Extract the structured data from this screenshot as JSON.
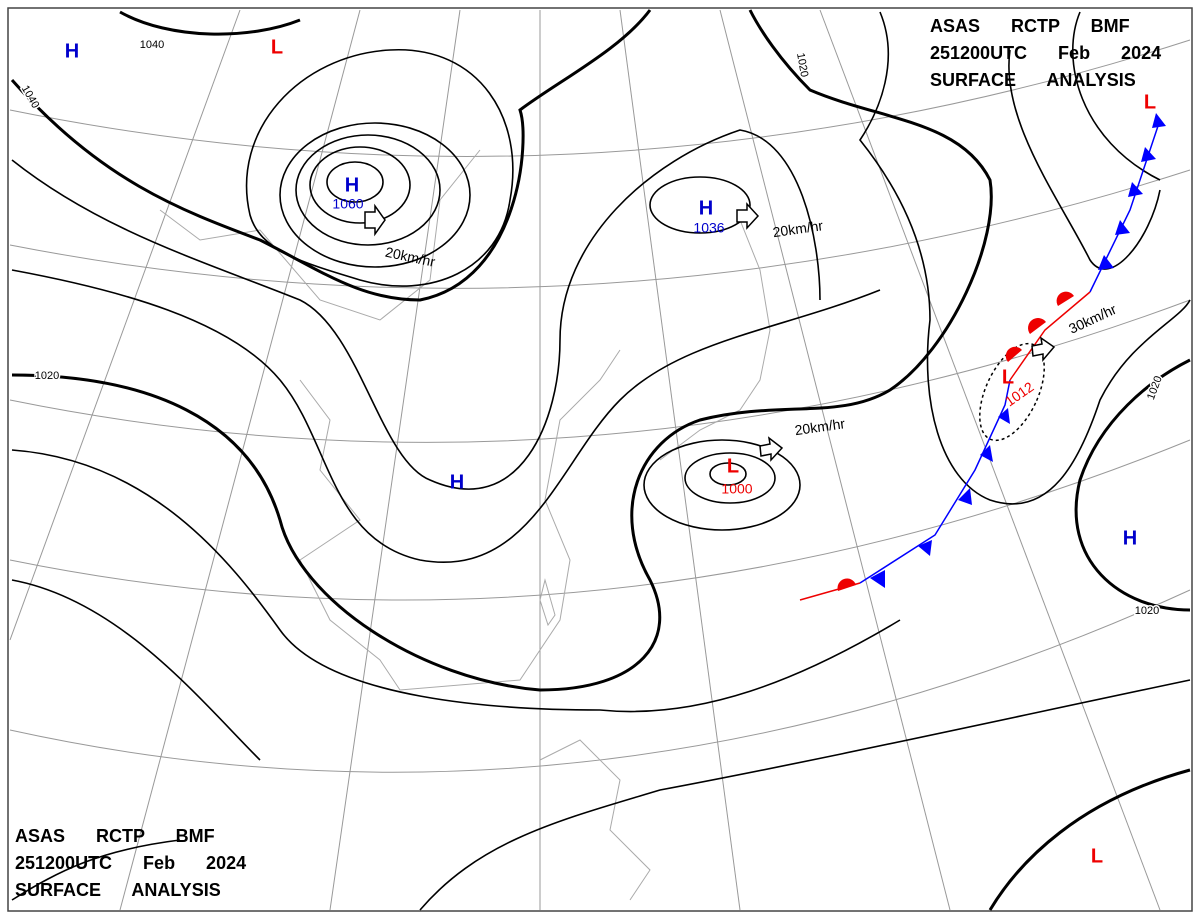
{
  "header": {
    "lines": [
      "ASAS RCTP BMF",
      "251200UTC Feb 2024",
      "SURFACE ANALYSIS"
    ]
  },
  "footer": {
    "lines": [
      "ASAS RCTP BMF",
      "251200UTC Feb 2024",
      "SURFACE ANALYSIS"
    ]
  },
  "centers": [
    {
      "label": "H"
    },
    {
      "label": "L"
    },
    {
      "label": "H",
      "value": "1060"
    },
    {
      "label": "H",
      "value": "1036"
    },
    {
      "label": "L"
    },
    {
      "label": "L",
      "value": "1000"
    },
    {
      "label": "L",
      "value": "1012"
    },
    {
      "label": "H"
    },
    {
      "label": "H"
    },
    {
      "label": "L"
    }
  ],
  "isobar_labels": [
    "1040",
    "1040",
    "1020",
    "1020",
    "1020",
    "1020"
  ],
  "motions": [
    "20km/hr",
    "20km/hr",
    "20km/hr",
    "30km/hr"
  ]
}
